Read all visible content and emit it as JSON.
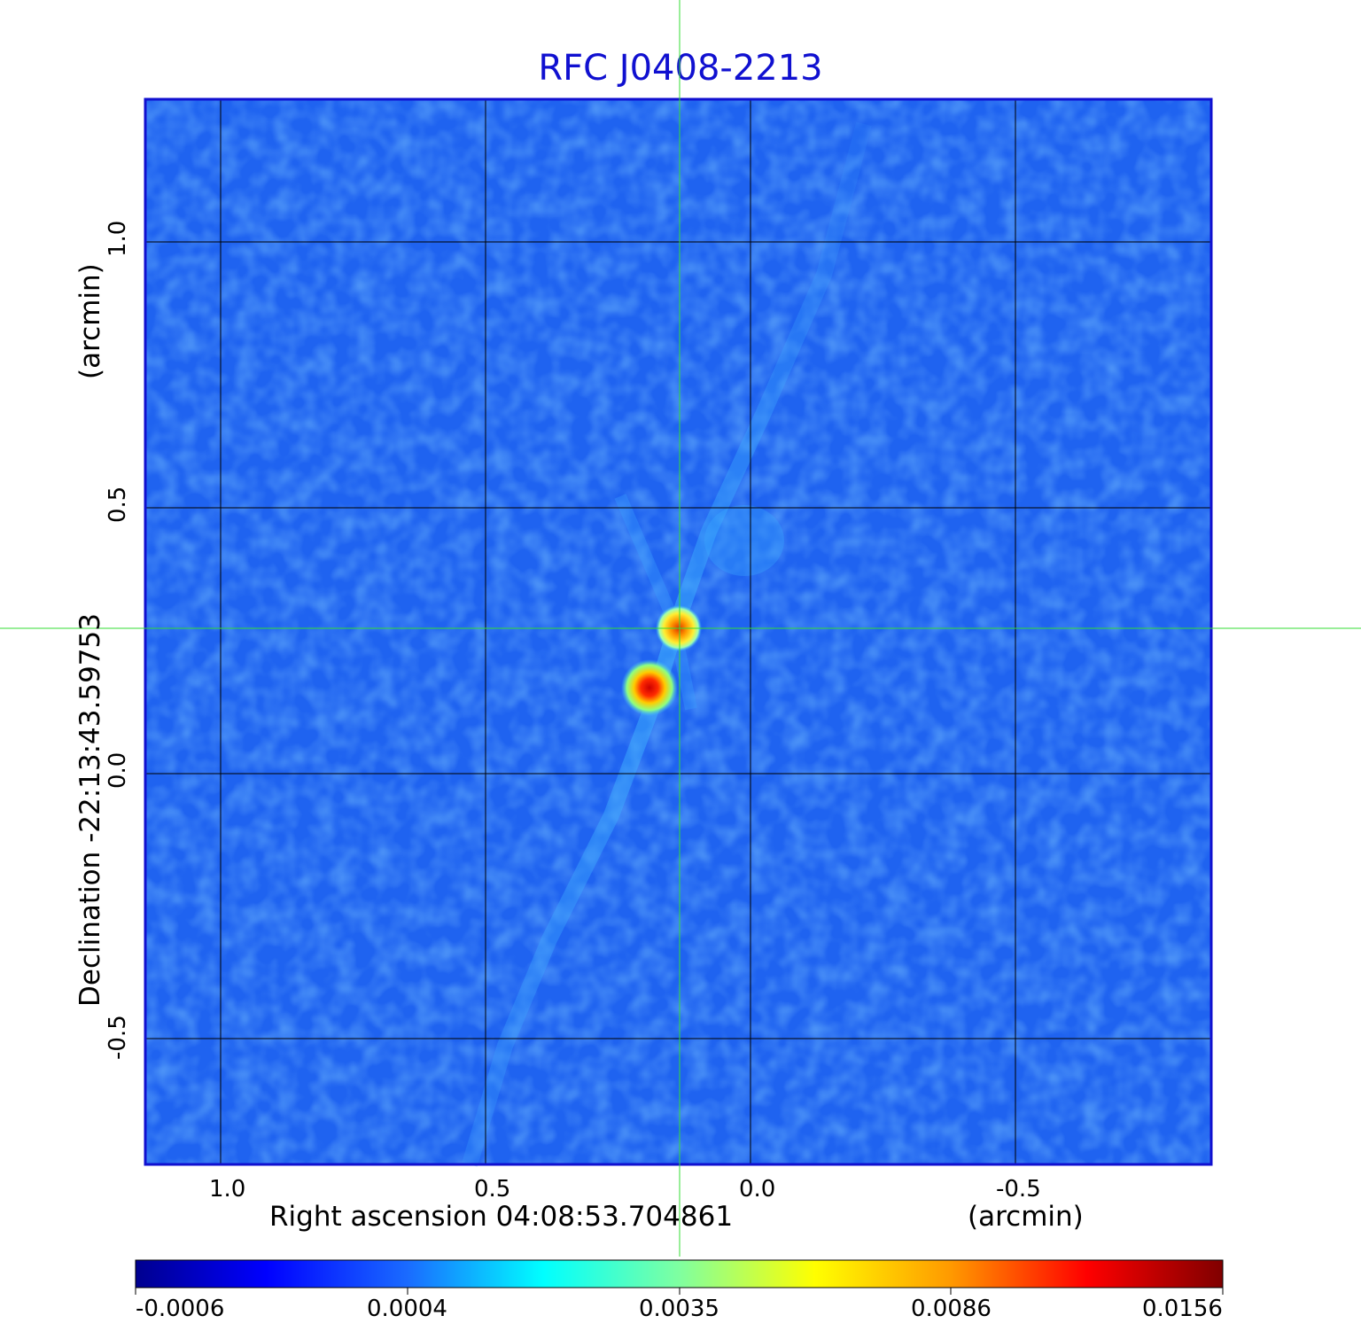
{
  "title": "RFC J0408-2213",
  "x_axis": {
    "label": "Right ascension  04:08:53.704861",
    "unit": "(arcmin)",
    "ticks": [
      "1.0",
      "0.5",
      "0.0",
      "-0.5"
    ]
  },
  "y_axis": {
    "label": "Declination  -22:13:43.59753",
    "unit": "(arcmin)",
    "ticks": [
      "1.0",
      "0.5",
      "0.0",
      "-0.5"
    ]
  },
  "colorbar": {
    "ticks": [
      "-0.0006",
      "0.0004",
      "0.0035",
      "0.0086",
      "0.0156"
    ]
  },
  "colors": {
    "title": "#1010d0",
    "frame": "#1010d0",
    "grid": "#000000",
    "crosshair": "#33dd33",
    "background_map": "#1f63f0"
  }
}
